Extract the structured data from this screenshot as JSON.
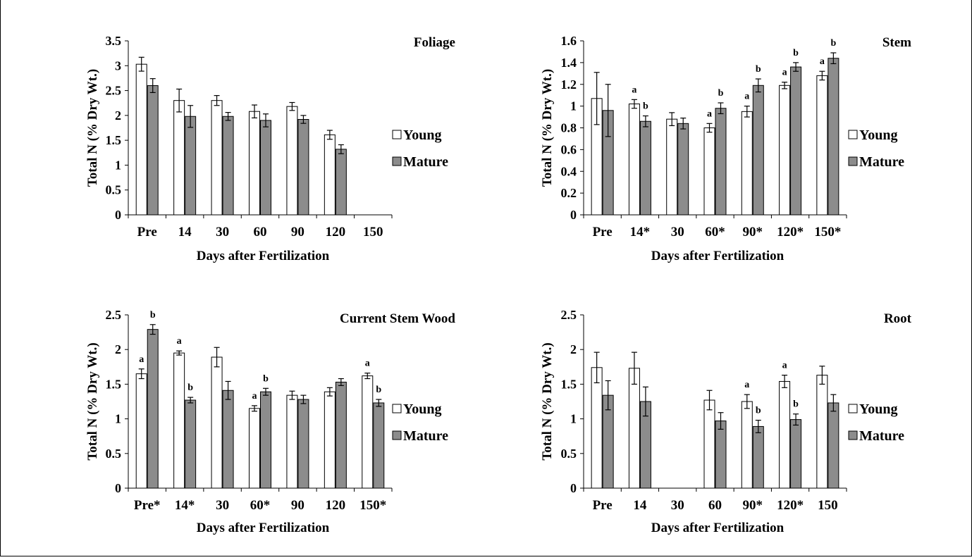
{
  "colors": {
    "young_fill": "#ffffff",
    "mature_fill": "#8c8c8c",
    "stroke": "#000000"
  },
  "chart_data": [
    {
      "type": "bar",
      "title": "Foliage",
      "xlabel": "Days after Fertilization",
      "ylabel": "Total N (% Dry Wt.)",
      "ylim": [
        0,
        3.5
      ],
      "yticks": [
        "0",
        "0.5",
        "1",
        "1.5",
        "2",
        "2.5",
        "3",
        "3.5"
      ],
      "categories": [
        "Pre",
        "14",
        "30",
        "60",
        "90",
        "120",
        "150"
      ],
      "legend_position": "right",
      "series": [
        {
          "name": "Young",
          "values": [
            3.03,
            2.3,
            2.3,
            2.08,
            2.18,
            1.61,
            null
          ],
          "errors": [
            0.14,
            0.23,
            0.1,
            0.13,
            0.08,
            0.09,
            null
          ],
          "letters": [
            "",
            "",
            "",
            "",
            "",
            "",
            ""
          ]
        },
        {
          "name": "Mature",
          "values": [
            2.6,
            1.98,
            1.98,
            1.9,
            1.92,
            1.32,
            null
          ],
          "errors": [
            0.14,
            0.22,
            0.08,
            0.13,
            0.08,
            0.09,
            null
          ],
          "letters": [
            "",
            "",
            "",
            "",
            "",
            "",
            ""
          ]
        }
      ]
    },
    {
      "type": "bar",
      "title": "Stem",
      "xlabel": "Days after Fertilization",
      "ylabel": "Total N (% Dry Wt.)",
      "ylim": [
        0,
        1.6
      ],
      "yticks": [
        "0",
        "0.2",
        "0.4",
        "0.6",
        "0.8",
        "1",
        "1.2",
        "1.4",
        "1.6"
      ],
      "categories": [
        "Pre",
        "14*",
        "30",
        "60*",
        "90*",
        "120*",
        "150*"
      ],
      "legend_position": "right",
      "series": [
        {
          "name": "Young",
          "values": [
            1.07,
            1.02,
            0.88,
            0.8,
            0.95,
            1.19,
            1.28
          ],
          "errors": [
            0.24,
            0.04,
            0.06,
            0.04,
            0.05,
            0.03,
            0.04
          ],
          "letters": [
            "",
            "a",
            "",
            "a",
            "a",
            "a",
            "a"
          ]
        },
        {
          "name": "Mature",
          "values": [
            0.96,
            0.86,
            0.84,
            0.98,
            1.19,
            1.36,
            1.44
          ],
          "errors": [
            0.24,
            0.05,
            0.05,
            0.05,
            0.06,
            0.04,
            0.05
          ],
          "letters": [
            "",
            "b",
            "",
            "b",
            "b",
            "b",
            "b"
          ]
        }
      ]
    },
    {
      "type": "bar",
      "title": "Current Stem Wood",
      "xlabel": "Days after Fertilization",
      "ylabel": "Total N (% Dry Wt.)",
      "ylim": [
        0,
        2.5
      ],
      "yticks": [
        "0",
        "0.5",
        "1",
        "1.5",
        "2",
        "2.5"
      ],
      "categories": [
        "Pre*",
        "14*",
        "30",
        "60*",
        "90",
        "120",
        "150*"
      ],
      "legend_position": "right",
      "series": [
        {
          "name": "Young",
          "values": [
            1.65,
            1.95,
            1.89,
            1.15,
            1.34,
            1.39,
            1.62
          ],
          "errors": [
            0.07,
            0.03,
            0.14,
            0.04,
            0.06,
            0.06,
            0.04
          ],
          "letters": [
            "a",
            "a",
            "",
            "a",
            "",
            "",
            "a"
          ]
        },
        {
          "name": "Mature",
          "values": [
            2.29,
            1.27,
            1.41,
            1.39,
            1.28,
            1.53,
            1.23
          ],
          "errors": [
            0.07,
            0.04,
            0.13,
            0.05,
            0.06,
            0.05,
            0.05
          ],
          "letters": [
            "b",
            "b",
            "",
            "b",
            "",
            "",
            "b"
          ]
        }
      ]
    },
    {
      "type": "bar",
      "title": "Root",
      "xlabel": "Days after Fertilization",
      "ylabel": "Total N (% Dry Wt.)",
      "ylim": [
        0,
        2.5
      ],
      "yticks": [
        "0",
        "0.5",
        "1",
        "1.5",
        "2",
        "2.5"
      ],
      "categories": [
        "Pre",
        "14",
        "30",
        "60",
        "90*",
        "120*",
        "150"
      ],
      "legend_position": "right",
      "series": [
        {
          "name": "Young",
          "values": [
            1.74,
            1.73,
            null,
            1.27,
            1.25,
            1.54,
            1.63
          ],
          "errors": [
            0.22,
            0.23,
            null,
            0.14,
            0.1,
            0.09,
            0.13
          ],
          "letters": [
            "",
            "",
            "",
            "",
            "a",
            "a",
            ""
          ]
        },
        {
          "name": "Mature",
          "values": [
            1.34,
            1.25,
            null,
            0.97,
            0.89,
            0.99,
            1.23
          ],
          "errors": [
            0.21,
            0.21,
            null,
            0.12,
            0.09,
            0.08,
            0.12
          ],
          "letters": [
            "",
            "",
            "",
            "",
            "b",
            "b",
            ""
          ]
        }
      ]
    }
  ]
}
